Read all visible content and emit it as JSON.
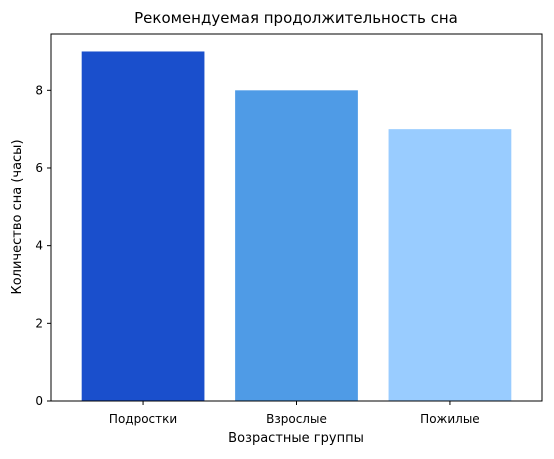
{
  "chart_data": {
    "type": "bar",
    "title": "Рекомендуемая продолжительность сна",
    "xlabel": "Возрастные группы",
    "ylabel": "Количество сна (часы)",
    "categories": [
      "Подростки",
      "Взрослые",
      "Пожилые"
    ],
    "values": [
      9,
      8,
      7
    ],
    "colors": [
      "#1a4fcc",
      "#4f9be6",
      "#99ccff"
    ],
    "ylim": [
      0,
      9.45
    ],
    "yticks": [
      0,
      2,
      4,
      6,
      8
    ],
    "grid": false,
    "legend": "none"
  }
}
